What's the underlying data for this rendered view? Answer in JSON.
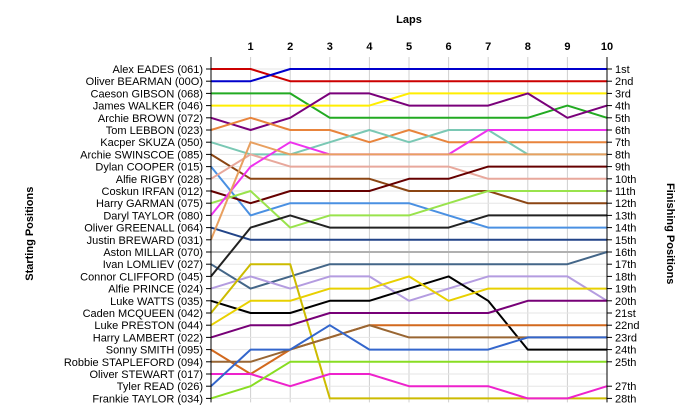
{
  "chart_data": {
    "type": "line",
    "title": "",
    "xlabel": "Laps",
    "ylabel_left": "Starting Positions",
    "ylabel_right": "Finishing Positions",
    "x": [
      0,
      1,
      2,
      3,
      4,
      5,
      6,
      7,
      8,
      9,
      10
    ],
    "x_ticks": [
      "1",
      "2",
      "3",
      "4",
      "5",
      "6",
      "7",
      "8",
      "9",
      "10"
    ],
    "ylim": [
      1,
      28
    ],
    "drivers": [
      "Alex EADES (061)",
      "Oliver BEARMAN (00O)",
      "Caeson GIBSON (068)",
      "James WALKER (046)",
      "Archie BROWN (072)",
      "Tom LEBBON (023)",
      "Kacper SKUZA (050)",
      "Archie SWINSCOE (085)",
      "Dylan COOPER (015)",
      "Alfie RIGBY (028)",
      "Coskun IRFAN (012)",
      "Harry GARMAN (075)",
      "Daryl TAYLOR (080)",
      "Oliver GREENALL (064)",
      "Justin BREWARD (031)",
      "Aston MILLAR (070)",
      "Ivan LOMLIEV (027)",
      "Connor CLIFFORD (045)",
      "Alfie PRINCE (024)",
      "Luke WATTS (035)",
      "Caden MCQUEEN (042)",
      "Luke PRESTON (044)",
      "Harry LAMBERT (022)",
      "Sonny SMITH (095)",
      "Robbie STAPLEFORD (094)",
      "Oliver STEWART (017)",
      "Tyler READ (026)",
      "Frankie TAYLOR (034)"
    ],
    "finish_labels": [
      "1st",
      "2nd",
      "3rd",
      "4th",
      "5th",
      "6th",
      "7th",
      "8th",
      "9th",
      "10th",
      "11th",
      "12th",
      "13th",
      "14th",
      "15th",
      "16th",
      "17th",
      "18th",
      "19th",
      "20th",
      "21st",
      "22nd",
      "23rd",
      "24th",
      "25th",
      "27th",
      "28th"
    ],
    "finish_positions": [
      1,
      2,
      3,
      4,
      5,
      6,
      7,
      8,
      9,
      10,
      11,
      12,
      13,
      14,
      15,
      16,
      17,
      18,
      19,
      20,
      21,
      22,
      23,
      24,
      25,
      27,
      28
    ],
    "grid": true,
    "series": [
      {
        "color": "#cc0000",
        "values": [
          1,
          1,
          2,
          2,
          2,
          2,
          2,
          2,
          2,
          2,
          2
        ]
      },
      {
        "color": "#0000cc",
        "values": [
          2,
          2,
          1,
          1,
          1,
          1,
          1,
          1,
          1,
          1,
          1
        ]
      },
      {
        "color": "#22aa22",
        "values": [
          3,
          3,
          3,
          5,
          5,
          5,
          5,
          5,
          5,
          4,
          5
        ]
      },
      {
        "color": "#ffee00",
        "values": [
          4,
          4,
          4,
          4,
          4,
          3,
          3,
          3,
          3,
          3,
          3
        ]
      },
      {
        "color": "#7a007a",
        "values": [
          5,
          6,
          5,
          3,
          3,
          4,
          4,
          4,
          3,
          5,
          4
        ]
      },
      {
        "color": "#e8843c",
        "values": [
          6,
          5,
          6,
          6,
          7,
          6,
          7,
          7,
          7,
          7,
          7
        ]
      },
      {
        "color": "#7ac8b4",
        "values": [
          7,
          8,
          8,
          7,
          6,
          7,
          6,
          6,
          8,
          8,
          8
        ]
      },
      {
        "color": "#8b4513",
        "values": [
          8,
          10,
          10,
          10,
          10,
          11,
          11,
          11,
          12,
          12,
          12
        ]
      },
      {
        "color": "#4a90e2",
        "values": [
          9,
          13,
          12,
          12,
          12,
          12,
          13,
          14,
          14,
          14,
          14
        ]
      },
      {
        "color": "#e8a89c",
        "values": [
          10,
          8,
          9,
          9,
          9,
          9,
          9,
          10,
          10,
          10,
          10
        ]
      },
      {
        "color": "#660000",
        "values": [
          11,
          12,
          11,
          11,
          11,
          10,
          10,
          9,
          9,
          9,
          9
        ]
      },
      {
        "color": "#99e34c",
        "values": [
          12,
          11,
          14,
          13,
          13,
          13,
          12,
          11,
          11,
          11,
          11
        ]
      },
      {
        "color": "#ee33ee",
        "values": [
          13,
          9,
          7,
          8,
          8,
          8,
          8,
          6,
          6,
          6,
          6
        ]
      },
      {
        "color": "#224488",
        "values": [
          14,
          15,
          15,
          15,
          15,
          15,
          15,
          15,
          15,
          15,
          15
        ]
      },
      {
        "color": "#e8a060",
        "values": [
          15,
          7,
          8,
          8,
          8,
          8,
          8,
          8,
          8,
          8,
          8
        ]
      },
      {
        "color": "#b0b0b0",
        "values": [
          16,
          16,
          16,
          16,
          16,
          16,
          16,
          16,
          16,
          16,
          16
        ]
      },
      {
        "color": "#446688",
        "values": [
          17,
          19,
          18,
          17,
          17,
          17,
          17,
          17,
          17,
          17,
          16
        ]
      },
      {
        "color": "#222222",
        "values": [
          18,
          14,
          13,
          14,
          14,
          14,
          14,
          13,
          13,
          13,
          13
        ]
      },
      {
        "color": "#b49ce0",
        "values": [
          19,
          18,
          19,
          18,
          18,
          20,
          19,
          18,
          18,
          18,
          20
        ]
      },
      {
        "color": "#000000",
        "values": [
          20,
          21,
          21,
          20,
          20,
          19,
          18,
          20,
          24,
          24,
          24
        ]
      },
      {
        "color": "#ccbb00",
        "values": [
          21,
          17,
          17,
          28,
          28,
          28,
          28,
          28,
          28,
          28,
          28
        ]
      },
      {
        "color": "#e8d000",
        "values": [
          22,
          20,
          20,
          19,
          19,
          18,
          20,
          19,
          19,
          19,
          19
        ]
      },
      {
        "color": "#770077",
        "values": [
          23,
          22,
          22,
          21,
          21,
          21,
          21,
          21,
          20,
          20,
          20
        ]
      },
      {
        "color": "#d2691e",
        "values": [
          24,
          26,
          24,
          23,
          22,
          22,
          22,
          22,
          22,
          22,
          22
        ]
      },
      {
        "color": "#996633",
        "values": [
          25,
          25,
          24,
          23,
          22,
          23,
          23,
          23,
          23,
          23,
          23
        ]
      },
      {
        "color": "#ee22cc",
        "values": [
          26,
          26,
          27,
          26,
          26,
          27,
          27,
          27,
          28,
          28,
          27
        ]
      },
      {
        "color": "#3366cc",
        "values": [
          27,
          24,
          24,
          22,
          24,
          24,
          24,
          24,
          23,
          23,
          23
        ]
      },
      {
        "color": "#88dd22",
        "values": [
          28,
          27,
          25,
          25,
          25,
          25,
          25,
          25,
          25,
          25,
          25
        ]
      }
    ]
  }
}
